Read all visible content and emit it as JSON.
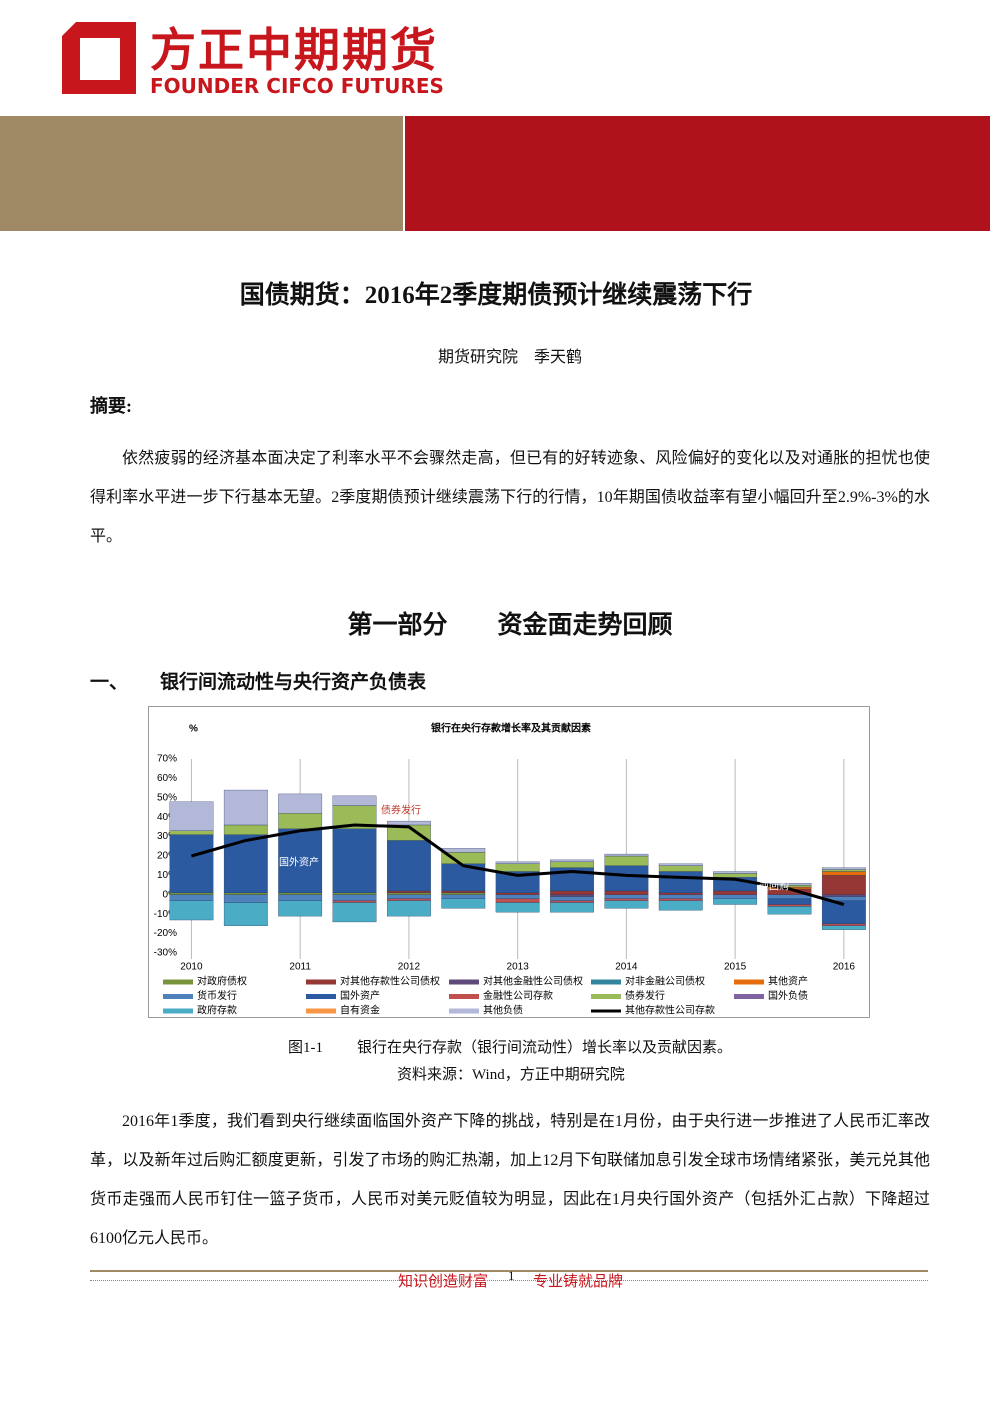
{
  "header": {
    "logo_cn": "方正中期期货",
    "logo_en": "FOUNDER CIFCO FUTURES"
  },
  "title": "国债期货：2016年2季度期债预计继续震荡下行",
  "author": "期货研究院　季天鹤",
  "abstract": {
    "label": "摘要:",
    "text": "依然疲弱的经济基本面决定了利率水平不会骤然走高，但已有的好转迹象、风险偏好的变化以及对通胀的担忧也使得利率水平进一步下行基本无望。2季度期债预计继续震荡下行的行情，10年期国债收益率有望小幅回升至2.9%-3%的水平。"
  },
  "section": {
    "heading": "第一部分　　资金面走势回顾",
    "subsection_no": "一、",
    "subsection": "银行间流动性与央行资产负债表"
  },
  "figure": {
    "caption_no": "图1-1",
    "caption": "银行在央行存款（银行间流动性）增长率以及贡献因素。",
    "source": "资料来源：Wind，方正中期研究院",
    "chart_data": {
      "type": "bar",
      "stacked": true,
      "title": "银行在央行存款增长率及其贡献因素",
      "y_unit": "%",
      "x": [
        2010,
        2010.5,
        2011,
        2011.5,
        2012,
        2012.5,
        2013,
        2013.5,
        2014,
        2014.5,
        2015,
        2015.5,
        2016
      ],
      "xlim": [
        2009.95,
        2016.13
      ],
      "xticks": [
        2010,
        2011,
        2012,
        2013,
        2014,
        2015,
        2016
      ],
      "ylim": [
        -30,
        70
      ],
      "yticks": [
        {
          "value": 70,
          "label": "70%"
        },
        {
          "value": 60,
          "label": "60%"
        },
        {
          "value": 50,
          "label": "50%"
        },
        {
          "value": 40,
          "label": "40%"
        },
        {
          "value": 30,
          "label": "30%"
        },
        {
          "value": 20,
          "label": "20%"
        },
        {
          "value": 10,
          "label": "10%"
        },
        {
          "value": 0,
          "label": "0%"
        },
        {
          "value": -10,
          "label": "-10%"
        },
        {
          "value": -20,
          "label": "-20%"
        },
        {
          "value": -30,
          "label": "-30%"
        }
      ],
      "grid": "x",
      "annotations": [
        "债券发行",
        "国外资产",
        "逆回购"
      ],
      "series": [
        {
          "name": "对政府债权",
          "color": "#77933c",
          "values": [
            1,
            1,
            1,
            1,
            1,
            1,
            0,
            0,
            0,
            0,
            0,
            0,
            0
          ]
        },
        {
          "name": "对其他存款性公司债权",
          "color": "#953735",
          "values": [
            0,
            0,
            0,
            0,
            1,
            1,
            1,
            2,
            2,
            1,
            2,
            3,
            10
          ]
        },
        {
          "name": "对其他金融性公司债权",
          "color": "#604a7b",
          "values": [
            0,
            0,
            0,
            0,
            0,
            0,
            0,
            -1,
            0,
            0,
            0,
            0,
            -1
          ]
        },
        {
          "name": "对非金融公司债权",
          "color": "#31859c",
          "values": [
            0,
            0,
            0,
            0,
            0,
            0,
            0,
            0,
            0,
            0,
            0,
            0,
            0
          ]
        },
        {
          "name": "其他资产",
          "color": "#e46c0a",
          "values": [
            0,
            0,
            0,
            0,
            0,
            0,
            0,
            0,
            0,
            0,
            0,
            1,
            2
          ]
        },
        {
          "name": "货币发行",
          "color": "#4f81bd",
          "values": [
            -3,
            -4,
            -3,
            -3,
            -2,
            -2,
            -2,
            -2,
            -2,
            -2,
            -2,
            -2,
            -2
          ]
        },
        {
          "name": "国外资产",
          "color": "#2c5aa0",
          "values": [
            30,
            30,
            33,
            33,
            26,
            14,
            11,
            12,
            13,
            11,
            7,
            -3,
            -12
          ]
        },
        {
          "name": "金融性公司存款",
          "color": "#c0504d",
          "values": [
            0,
            0,
            0,
            -1,
            -1,
            0,
            -2,
            -1,
            -1,
            -1,
            0,
            -1,
            -1
          ]
        },
        {
          "name": "债券发行",
          "color": "#9bbb59",
          "values": [
            2,
            5,
            8,
            12,
            8,
            6,
            4,
            3,
            5,
            3,
            2,
            1,
            1
          ]
        },
        {
          "name": "国外负债",
          "color": "#8064a2",
          "values": [
            0,
            0,
            0,
            0,
            0,
            0,
            0,
            0,
            0,
            0,
            0,
            0,
            0
          ]
        },
        {
          "name": "政府存款",
          "color": "#4bacc6",
          "values": [
            -10,
            -12,
            -8,
            -10,
            -8,
            -5,
            -5,
            -5,
            -4,
            -5,
            -3,
            -4,
            -2
          ]
        },
        {
          "name": "自有资金",
          "color": "#f79646",
          "values": [
            0,
            0,
            0,
            0,
            0,
            0,
            0,
            0,
            0,
            0,
            0,
            0,
            0
          ]
        },
        {
          "name": "其他负债",
          "color": "#b3b8d9",
          "values": [
            15,
            18,
            10,
            5,
            2,
            2,
            1,
            1,
            1,
            1,
            1,
            1,
            1
          ]
        },
        {
          "name": "其他存款性公司存款",
          "color": "#000000",
          "type": "line",
          "values": [
            20,
            28,
            33,
            36,
            35,
            15,
            10,
            12,
            10,
            9,
            8,
            3,
            -5
          ]
        }
      ]
    }
  },
  "body": "2016年1季度，我们看到央行继续面临国外资产下降的挑战，特别是在1月份，由于央行进一步推进了人民币汇率改革，以及新年过后购汇额度更新，引发了市场的购汇热潮，加上12月下旬联储加息引发全球市场情绪紧张，美元兑其他货币走强而人民币钉住一篮子货币，人民币对美元贬值较为明显，因此在1月央行国外资产（包括外汇占款）下降超过6100亿元人民币。",
  "footer": {
    "left": "知识创造财富",
    "page": "1",
    "right": "专业铸就品牌"
  }
}
